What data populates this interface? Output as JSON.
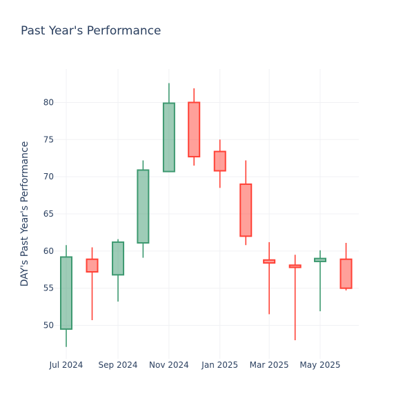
{
  "chart_data": {
    "type": "candlestick",
    "title": "Past Year's Performance",
    "ylabel": "DAY's Past Year's Performance",
    "xlabel": "",
    "ylim": [
      45.5,
      84.5
    ],
    "y_ticks": [
      50,
      55,
      60,
      65,
      70,
      75,
      80
    ],
    "x_ticks": [
      "Jul 2024",
      "Sep 2024",
      "Nov 2024",
      "Jan 2025",
      "Mar 2025",
      "May 2025"
    ],
    "grid": true,
    "colors": {
      "increasing": "#3d9970",
      "decreasing": "#ff4136"
    },
    "candles": [
      {
        "date": "2024-07-01",
        "open": 49.5,
        "high": 60.8,
        "low": 47.1,
        "close": 59.2
      },
      {
        "date": "2024-08-01",
        "open": 58.9,
        "high": 60.5,
        "low": 50.7,
        "close": 57.2
      },
      {
        "date": "2024-09-01",
        "open": 56.8,
        "high": 61.6,
        "low": 53.2,
        "close": 61.2
      },
      {
        "date": "2024-10-01",
        "open": 61.1,
        "high": 72.2,
        "low": 59.1,
        "close": 70.9
      },
      {
        "date": "2024-11-01",
        "open": 70.7,
        "high": 82.6,
        "low": 70.7,
        "close": 79.9
      },
      {
        "date": "2024-12-01",
        "open": 80.0,
        "high": 81.9,
        "low": 71.5,
        "close": 72.7
      },
      {
        "date": "2025-01-01",
        "open": 73.4,
        "high": 75.0,
        "low": 68.5,
        "close": 70.8
      },
      {
        "date": "2025-02-01",
        "open": 69.0,
        "high": 72.2,
        "low": 60.8,
        "close": 62.0
      },
      {
        "date": "2025-03-01",
        "open": 58.8,
        "high": 61.2,
        "low": 51.5,
        "close": 58.4
      },
      {
        "date": "2025-04-01",
        "open": 58.1,
        "high": 59.5,
        "low": 48.0,
        "close": 57.8
      },
      {
        "date": "2025-05-01",
        "open": 58.6,
        "high": 60.1,
        "low": 51.9,
        "close": 59.0
      },
      {
        "date": "2025-06-01",
        "open": 58.9,
        "high": 61.1,
        "low": 54.7,
        "close": 55.0
      }
    ]
  }
}
